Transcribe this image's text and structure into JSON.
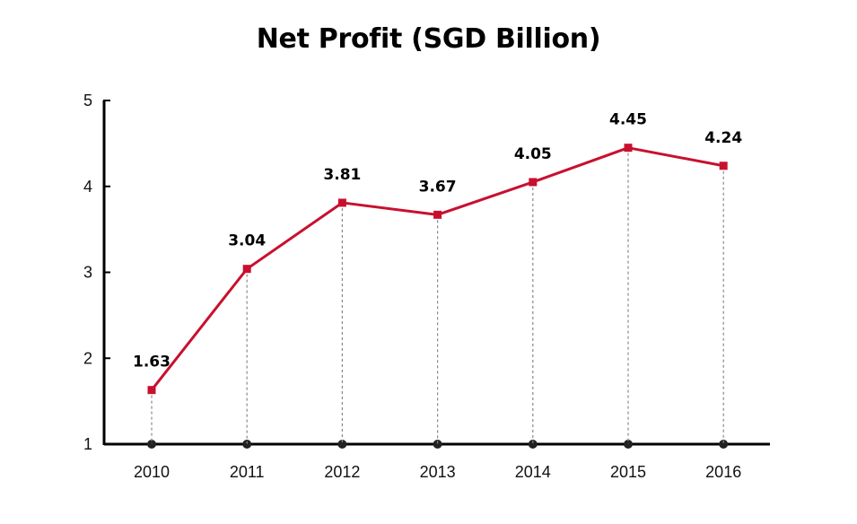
{
  "chart_data": {
    "type": "line",
    "title": "Net Profit (SGD Billion)",
    "xlabel": "",
    "ylabel": "",
    "categories": [
      "2010",
      "2011",
      "2012",
      "2013",
      "2014",
      "2015",
      "2016"
    ],
    "series": [
      {
        "values": [
          1.63,
          3.04,
          3.81,
          3.67,
          4.05,
          4.45,
          4.24
        ],
        "color": "#c8102e"
      }
    ],
    "data_labels": [
      "1.63",
      "3.04",
      "3.81",
      "3.67",
      "4.05",
      "4.45",
      "4.24"
    ],
    "ylim": [
      1,
      5
    ],
    "yticks": [
      "1",
      "2",
      "3",
      "4",
      "5"
    ],
    "grid": false,
    "drop_lines": true,
    "colors": {
      "line": "#c8102e",
      "axis": "#000000",
      "baseline_marker": "#222222",
      "drop_line": "#888888"
    }
  }
}
